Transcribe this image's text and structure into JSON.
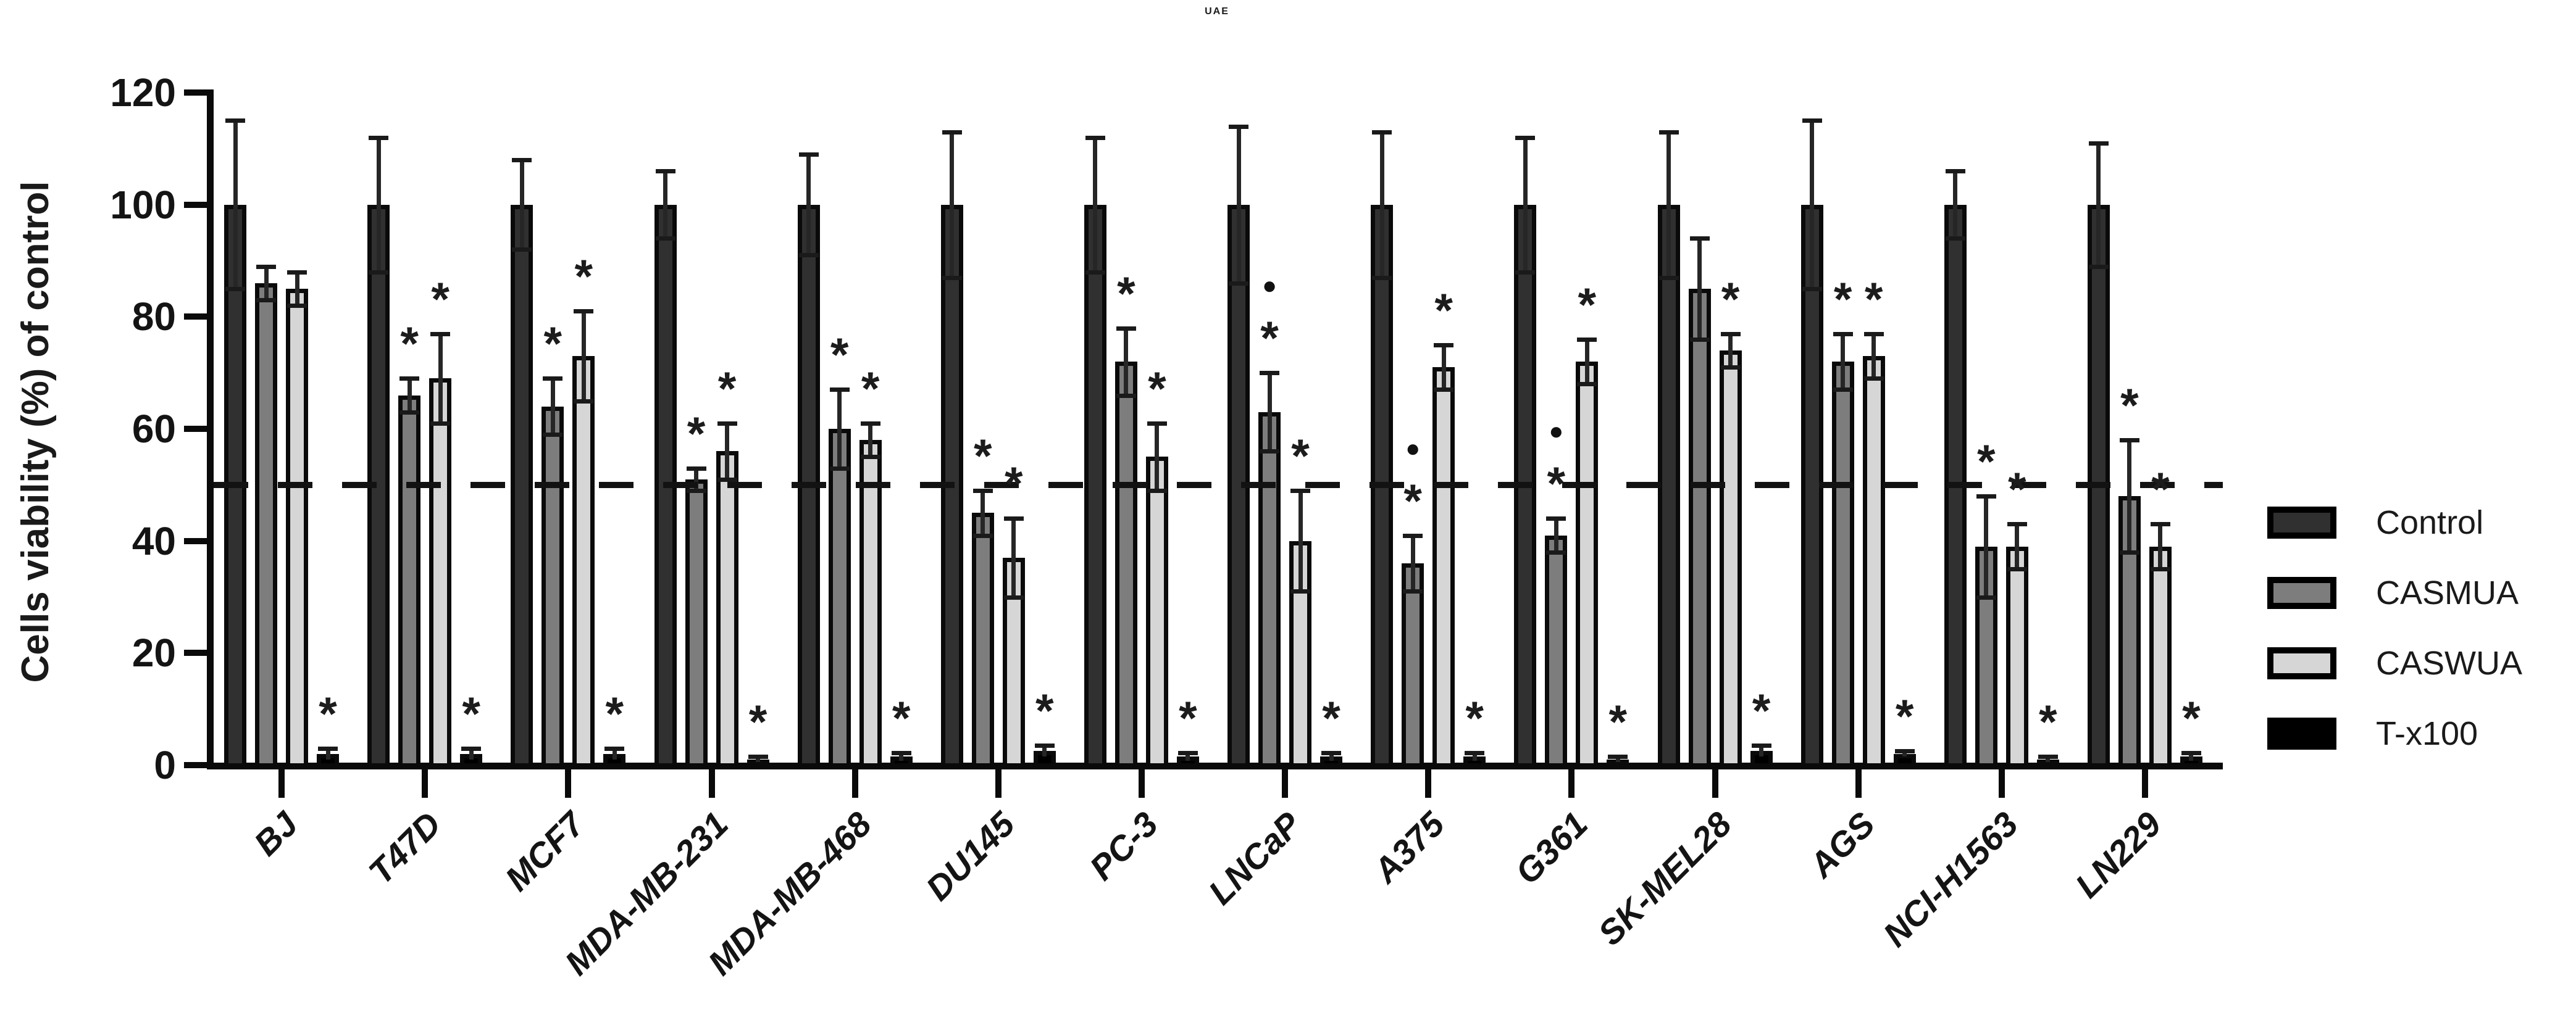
{
  "title": "UAE",
  "y_axis": {
    "label": "Cells viability (%) of control",
    "ticks": [
      0,
      20,
      40,
      60,
      80,
      100,
      120
    ]
  },
  "reference_line_value": 50,
  "annotation_symbols": {
    "significance": "*",
    "dot": "●"
  },
  "legend": {
    "position": "right",
    "entries": [
      {
        "label": "Control",
        "color": "#303030"
      },
      {
        "label": "CASMUA",
        "color": "#7d7d7d"
      },
      {
        "label": "CASWUA",
        "color": "#d6d6d6"
      },
      {
        "label": "T-x100",
        "color": "#000000"
      }
    ]
  },
  "chart_data": {
    "type": "bar",
    "title": "UAE",
    "xlabel": "",
    "ylabel": "Cells viability (%) of control",
    "ylim": [
      0,
      120
    ],
    "grid": false,
    "legend_position": "right",
    "reference_line_y": 50,
    "categories": [
      "BJ",
      "T47D",
      "MCF7",
      "MDA-MB-231",
      "MDA-MB-468",
      "DU145",
      "PC-3",
      "LNCaP",
      "A375",
      "G361",
      "SK-MEL28",
      "AGS",
      "NCI-H1563",
      "LN229"
    ],
    "series": [
      {
        "name": "Control",
        "color": "#303030",
        "values": [
          100,
          100,
          100,
          100,
          100,
          100,
          100,
          100,
          100,
          100,
          100,
          100,
          100,
          100
        ],
        "errors": [
          15,
          12,
          8,
          6,
          9,
          13,
          12,
          14,
          13,
          12,
          13,
          15,
          6,
          11
        ],
        "annotations": [
          "",
          "",
          "",
          "",
          "",
          "",
          "",
          "",
          "",
          "",
          "",
          "",
          "",
          ""
        ]
      },
      {
        "name": "CASMUA",
        "color": "#7d7d7d",
        "values": [
          86,
          66,
          64,
          51,
          60,
          45,
          72,
          63,
          36,
          41,
          85,
          72,
          39,
          48
        ],
        "errors": [
          3,
          3,
          5,
          2,
          7,
          4,
          6,
          7,
          5,
          3,
          9,
          5,
          9,
          10
        ],
        "annotations": [
          "",
          "*",
          "*",
          "*",
          "*",
          "*",
          "*",
          "●*",
          "●*",
          "●*",
          "",
          "*",
          "*",
          "*"
        ]
      },
      {
        "name": "CASWUA",
        "color": "#d6d6d6",
        "values": [
          85,
          69,
          73,
          56,
          58,
          37,
          55,
          40,
          71,
          72,
          74,
          73,
          39,
          39
        ],
        "errors": [
          3,
          8,
          8,
          5,
          3,
          7,
          6,
          9,
          4,
          4,
          3,
          4,
          4,
          4
        ],
        "annotations": [
          "",
          "*",
          "*",
          "*",
          "*",
          "*",
          "*",
          "*",
          "*",
          "*",
          "*",
          "*",
          "*",
          "*"
        ]
      },
      {
        "name": "T-x100",
        "color": "#000000",
        "values": [
          2,
          2,
          2,
          1,
          1.5,
          2.5,
          1.5,
          1.5,
          1.5,
          1,
          2.5,
          2,
          1,
          1.5
        ],
        "errors": [
          1,
          1,
          1,
          0.5,
          0.7,
          1,
          0.7,
          0.7,
          0.7,
          0.5,
          1,
          0.5,
          0.5,
          0.7
        ],
        "annotations": [
          "*",
          "*",
          "*",
          "*",
          "*",
          "*",
          "*",
          "*",
          "*",
          "*",
          "*",
          "*",
          "*",
          "*"
        ]
      }
    ]
  }
}
